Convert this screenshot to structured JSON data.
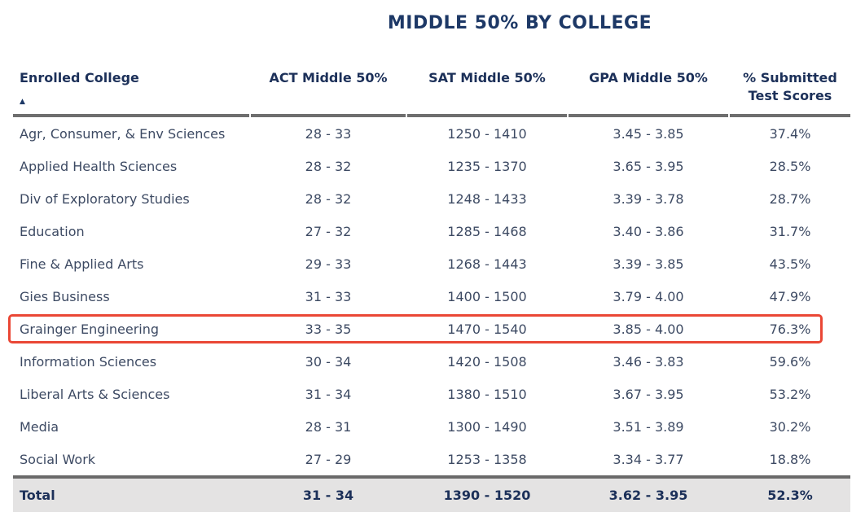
{
  "title": "MIDDLE 50% BY COLLEGE",
  "columns": [
    {
      "label": "Enrolled College",
      "sorted": true
    },
    {
      "label": "ACT Middle 50%"
    },
    {
      "label": "SAT Middle 50%"
    },
    {
      "label": "GPA Middle 50%"
    },
    {
      "label": "% Submitted Test Scores"
    }
  ],
  "sort_indicator": "▲",
  "chart_data": {
    "type": "table",
    "title": "MIDDLE 50% BY COLLEGE",
    "column_headers": [
      "Enrolled College",
      "ACT Middle 50%",
      "SAT Middle 50%",
      "GPA Middle 50%",
      "% Submitted Test Scores"
    ],
    "sort": {
      "column": "Enrolled College",
      "direction": "asc"
    },
    "highlighted_row": "Grainger Engineering",
    "rows": [
      {
        "college": "Agr, Consumer, & Env Sciences",
        "act": "28 - 33",
        "sat": "1250 - 1410",
        "gpa": "3.45 - 3.85",
        "pct": "37.4%"
      },
      {
        "college": "Applied Health Sciences",
        "act": "28 - 32",
        "sat": "1235 - 1370",
        "gpa": "3.65 - 3.95",
        "pct": "28.5%"
      },
      {
        "college": "Div of Exploratory Studies",
        "act": "28 - 32",
        "sat": "1248 - 1433",
        "gpa": "3.39 - 3.78",
        "pct": "28.7%"
      },
      {
        "college": "Education",
        "act": "27 - 32",
        "sat": "1285 - 1468",
        "gpa": "3.40 - 3.86",
        "pct": "31.7%"
      },
      {
        "college": "Fine & Applied Arts",
        "act": "29 - 33",
        "sat": "1268 - 1443",
        "gpa": "3.39 - 3.85",
        "pct": "43.5%"
      },
      {
        "college": "Gies Business",
        "act": "31 - 33",
        "sat": "1400 - 1500",
        "gpa": "3.79 - 4.00",
        "pct": "47.9%"
      },
      {
        "college": "Grainger Engineering",
        "act": "33 - 35",
        "sat": "1470 - 1540",
        "gpa": "3.85 - 4.00",
        "pct": "76.3%",
        "highlighted": true
      },
      {
        "college": "Information Sciences",
        "act": "30 - 34",
        "sat": "1420 - 1508",
        "gpa": "3.46 - 3.83",
        "pct": "59.6%"
      },
      {
        "college": "Liberal Arts & Sciences",
        "act": "31 - 34",
        "sat": "1380 - 1510",
        "gpa": "3.67 - 3.95",
        "pct": "53.2%"
      },
      {
        "college": "Media",
        "act": "28 - 31",
        "sat": "1300 - 1490",
        "gpa": "3.51 - 3.89",
        "pct": "30.2%"
      },
      {
        "college": "Social Work",
        "act": "27 - 29",
        "sat": "1253 - 1358",
        "gpa": "3.34 - 3.77",
        "pct": "18.8%"
      }
    ],
    "total": {
      "college": "Total",
      "act": "31 - 34",
      "sat": "1390 - 1520",
      "gpa": "3.62 - 3.95",
      "pct": "52.3%"
    }
  },
  "colors": {
    "navy_text": "#1d3866",
    "body_text": "#3d4a63",
    "accent_red": "#ea4735",
    "header_border_gray": "#6e6e6e",
    "total_row_bg": "#e4e3e3"
  }
}
